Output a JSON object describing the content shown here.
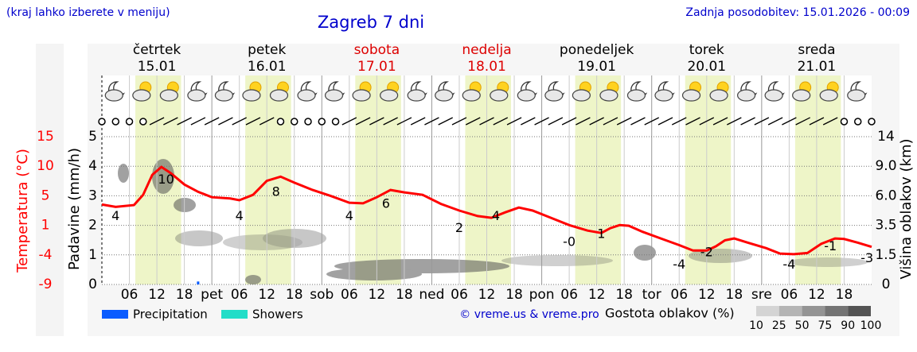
{
  "header": {
    "note": "(kraj lahko izberete v meniju)",
    "title": "Zagreb 7 dni",
    "updated": "Zadnja posodobitev: 15.01.2026 - 00:09"
  },
  "chart_data": {
    "type": "meteogram",
    "days": [
      {
        "name": "četrtek",
        "date": "15.01",
        "weekend": false
      },
      {
        "name": "petek",
        "date": "16.01",
        "weekend": false
      },
      {
        "name": "sobota",
        "date": "17.01",
        "weekend": true
      },
      {
        "name": "nedelja",
        "date": "18.01",
        "weekend": true
      },
      {
        "name": "ponedeljek",
        "date": "19.01",
        "weekend": false
      },
      {
        "name": "torek",
        "date": "20.01",
        "weekend": false
      },
      {
        "name": "sreda",
        "date": "21.01",
        "weekend": false
      }
    ],
    "day_color": "#000000",
    "weekend_color": "#dd0000",
    "daylight": [
      [
        7.3,
        17.3
      ],
      [
        31.3,
        41.3
      ],
      [
        55.3,
        65.3
      ],
      [
        79.3,
        89.3
      ],
      [
        103.3,
        113.3
      ],
      [
        127.3,
        137.3
      ],
      [
        151.3,
        161.3
      ]
    ],
    "daylight_color": "#eef5c8",
    "xlim": [
      0,
      168
    ],
    "xticks": [
      {
        "value": 6,
        "label": "06"
      },
      12,
      18,
      {
        "value": 24,
        "label": "pet"
      },
      {
        "value": 30,
        "label": "06"
      },
      {
        "value": 36,
        "label": "12"
      },
      {
        "value": 42,
        "label": "18"
      },
      {
        "value": 48,
        "label": "sob"
      },
      {
        "value": 54,
        "label": "06"
      },
      {
        "value": 60,
        "label": "12"
      },
      {
        "value": 66,
        "label": "18"
      },
      {
        "value": 72,
        "label": "ned"
      },
      {
        "value": 78,
        "label": "06"
      },
      {
        "value": 84,
        "label": "12"
      },
      {
        "value": 90,
        "label": "18"
      },
      {
        "value": 96,
        "label": "pon"
      },
      {
        "value": 102,
        "label": "06"
      },
      {
        "value": 108,
        "label": "12"
      },
      {
        "value": 114,
        "label": "18"
      },
      {
        "value": 120,
        "label": "tor"
      },
      {
        "value": 126,
        "label": "06"
      },
      {
        "value": 132,
        "label": "12"
      },
      {
        "value": 138,
        "label": "18"
      },
      {
        "value": 144,
        "label": "sre"
      },
      {
        "value": 150,
        "label": "06"
      },
      {
        "value": 156,
        "label": "12"
      },
      {
        "value": 162,
        "label": "18"
      }
    ],
    "ylabel": "Padavine (mm/h)",
    "ylim": [
      0,
      5
    ],
    "yticks": [
      0,
      1,
      2,
      3,
      4,
      5
    ],
    "y2label": "Temperatura (°C)",
    "y2color": "#ff0000",
    "y2lim": [
      -9.2,
      15.2
    ],
    "y2ticks": [
      {
        "value": -9.2,
        "label": "-9"
      },
      {
        "value": -4.32,
        "label": "-4"
      },
      {
        "value": 0.56,
        "label": "1"
      },
      {
        "value": 5.44,
        "label": "5"
      },
      {
        "value": 10.32,
        "label": "10"
      },
      {
        "value": 15.2,
        "label": "15"
      }
    ],
    "y3label": "Višina oblakov (km)",
    "y3ticks": [
      0,
      1.5,
      3.5,
      {
        "value": 6,
        "label": "6.0"
      },
      {
        "value": 9,
        "label": "9.0"
      },
      14
    ],
    "temperature": {
      "color": "#ff0000",
      "x": [
        0,
        3,
        7,
        9,
        11,
        13,
        15,
        18,
        21,
        24,
        28,
        30,
        33,
        36,
        39,
        42,
        46,
        50,
        54,
        57,
        60,
        63,
        66,
        70,
        74,
        78,
        82,
        85,
        88,
        91,
        94,
        98,
        102,
        106,
        109,
        111,
        113,
        115,
        118,
        122,
        126,
        129,
        132,
        134,
        136,
        138,
        141,
        145,
        148,
        151,
        154,
        157,
        160,
        162,
        165,
        168
      ],
      "values": [
        4.0,
        3.6,
        3.9,
        5.6,
        8.9,
        10.2,
        9.2,
        7.3,
        6.1,
        5.2,
        5.0,
        4.7,
        5.6,
        7.9,
        8.6,
        7.6,
        6.4,
        5.4,
        4.3,
        4.2,
        5.2,
        6.4,
        6.0,
        5.6,
        4.1,
        3.0,
        2.1,
        1.8,
        2.7,
        3.5,
        3.0,
        1.8,
        0.6,
        -0.3,
        -0.7,
        0.1,
        0.6,
        0.5,
        -0.5,
        -1.6,
        -2.7,
        -3.6,
        -3.6,
        -2.9,
        -1.9,
        -1.6,
        -2.3,
        -3.2,
        -4.1,
        -4.2,
        -4.0,
        -2.5,
        -1.6,
        -1.7,
        -2.3,
        -3.0
      ],
      "labels": [
        {
          "x": 3,
          "value": 4
        },
        {
          "x": 14,
          "value": 10
        },
        {
          "x": 30,
          "value": 4
        },
        {
          "x": 38,
          "value": 8
        },
        {
          "x": 54,
          "value": 4
        },
        {
          "x": 62,
          "value": 6
        },
        {
          "x": 78,
          "value": 2
        },
        {
          "x": 86,
          "value": 4
        },
        {
          "x": 102,
          "value": -0.3,
          "label": "-0"
        },
        {
          "x": 109,
          "value": 1
        },
        {
          "x": 126,
          "value": -4
        },
        {
          "x": 132,
          "value": -2
        },
        {
          "x": 150,
          "value": -4
        },
        {
          "x": 159,
          "value": -1
        },
        {
          "x": 167,
          "value": -3
        }
      ]
    },
    "precipitation": {
      "color": "#0a5cff",
      "x": [
        21
      ],
      "values": [
        0.1
      ]
    },
    "legend": [
      {
        "name": "Precipitation",
        "color": "#0a5cff"
      },
      {
        "name": "Showers",
        "color": "#22ddc8"
      }
    ],
    "credit": "© vreme.us & vreme.pro",
    "cloud_scale": {
      "title": "Gostota oblakov (%)",
      "ticks": [
        10,
        25,
        50,
        75,
        90,
        100
      ]
    }
  }
}
